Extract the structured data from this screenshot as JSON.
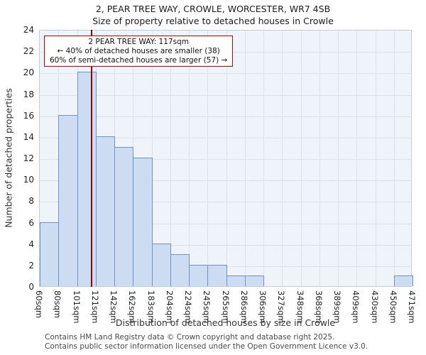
{
  "title": "2, PEAR TREE WAY, CROWLE, WORCESTER, WR7 4SB",
  "subtitle": "Size of property relative to detached houses in Crowle",
  "chart_data": {
    "type": "bar",
    "categories": [
      "60sqm",
      "80sqm",
      "101sqm",
      "121sqm",
      "142sqm",
      "162sqm",
      "183sqm",
      "204sqm",
      "224sqm",
      "245sqm",
      "265sqm",
      "286sqm",
      "306sqm",
      "327sqm",
      "348sqm",
      "368sqm",
      "389sqm",
      "409sqm",
      "430sqm",
      "450sqm",
      "471sqm"
    ],
    "values": [
      6,
      16,
      20,
      14,
      13,
      12,
      4,
      3,
      2,
      2,
      1,
      1,
      0,
      0,
      0,
      0,
      0,
      0,
      0,
      1
    ],
    "title": "2, PEAR TREE WAY, CROWLE, WORCESTER, WR7 4SB",
    "xlabel": "Distribution of detached houses by size in Crowle",
    "ylabel": "Number of detached properties",
    "ylim": [
      0,
      24
    ],
    "ytick_step": 2,
    "grid": true,
    "legend": "none",
    "marker_value_sqm": 117,
    "marker_fraction_bins": 2.8,
    "bar_fill": "#ccdcf2",
    "bar_border": "#6f94c9",
    "marker_color": "#990000",
    "annotation_border": "#cc0000"
  },
  "annotation": {
    "line1": "2 PEAR TREE WAY: 117sqm",
    "line2": "← 40% of detached houses are smaller (38)",
    "line3": "60% of semi-detached houses are larger (57) →"
  },
  "footer": {
    "line1": "Contains HM Land Registry data © Crown copyright and database right 2025.",
    "line2": "Contains public sector information licensed under the Open Government Licence v3.0."
  }
}
